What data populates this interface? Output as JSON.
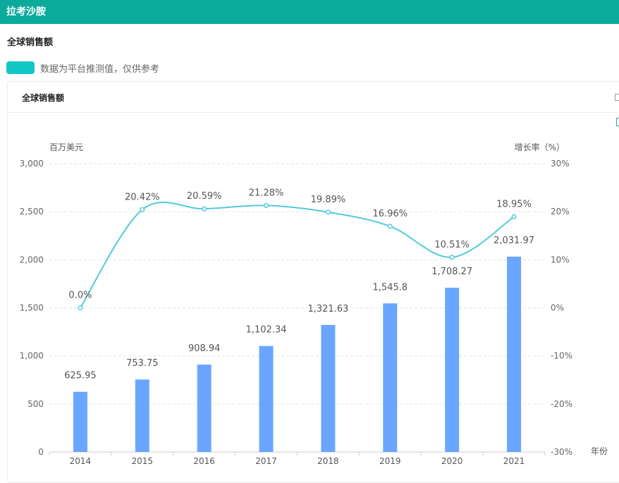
{
  "app": {
    "title": "拉考沙胺"
  },
  "section": {
    "title": "全球销售额"
  },
  "notice": {
    "text": "数据为平台推测值，仅供参考",
    "color": "#13c7c7"
  },
  "card": {
    "title": "全球销售额"
  },
  "chart_data": {
    "type": "bar",
    "categories": [
      "2014",
      "2015",
      "2016",
      "2017",
      "2018",
      "2019",
      "2020",
      "2021"
    ],
    "series": [
      {
        "type": "bar",
        "axis": "left",
        "values": [
          625.95,
          753.75,
          908.94,
          1102.34,
          1321.63,
          1545.8,
          1708.27,
          2031.97
        ],
        "labels": [
          "625.95",
          "753.75",
          "908.94",
          "1,102.34",
          "1,321.63",
          "1,545.8",
          "1,708.27",
          "2,031.97"
        ],
        "color": "#6aa6ff"
      },
      {
        "type": "line",
        "axis": "right",
        "values": [
          0.0,
          20.42,
          20.59,
          21.28,
          19.89,
          16.96,
          10.51,
          18.95
        ],
        "labels": [
          "0.0%",
          "20.42%",
          "20.59%",
          "21.28%",
          "19.89%",
          "16.96%",
          "10.51%",
          "18.95%"
        ],
        "color": "#52cbd9",
        "smooth": true
      }
    ],
    "y_left": {
      "label": "百万美元",
      "ylim": [
        0,
        3000
      ],
      "ticks": [
        0,
        500,
        1000,
        1500,
        2000,
        2500,
        3000
      ],
      "tick_labels": [
        "0",
        "500",
        "1,000",
        "1,500",
        "2,000",
        "2,500",
        "3,000"
      ]
    },
    "y_right": {
      "label": "增长率（%）",
      "ylim": [
        -30,
        30
      ],
      "ticks": [
        -30,
        -20,
        -10,
        0,
        10,
        20,
        30
      ],
      "tick_labels": [
        "-30%",
        "-20%",
        "-10%",
        "0%",
        "10%",
        "20%",
        "30%"
      ]
    },
    "xlabel": "年份",
    "grid": true
  }
}
